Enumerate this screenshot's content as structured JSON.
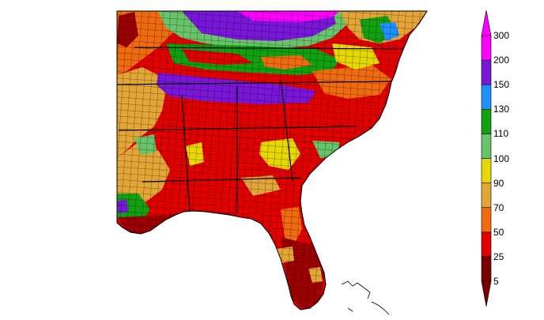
{
  "legend": {
    "ticks": [
      "300",
      "200",
      "150",
      "130",
      "110",
      "100",
      "90",
      "70",
      "50",
      "25",
      "5"
    ],
    "bands": [
      {
        "color": "#7a0000"
      },
      {
        "color": "#e00000"
      },
      {
        "color": "#f06a10"
      },
      {
        "color": "#e3a536"
      },
      {
        "color": "#e6d800"
      },
      {
        "color": "#68c46a"
      },
      {
        "color": "#10a010"
      },
      {
        "color": "#1e90ff"
      },
      {
        "color": "#7a16d8"
      },
      {
        "color": "#ff00ff"
      }
    ],
    "arrow_colors": {
      "bottom": "#7a0000",
      "top": "#ff00ff"
    }
  },
  "map": {
    "colors": {
      "dark_red": "#9c0000",
      "red": "#e00000",
      "orange": "#f06a10",
      "light_orange": "#e3a536",
      "yellow": "#e6d800",
      "light_green": "#68c46a",
      "green": "#10a010",
      "blue": "#1e90ff",
      "purple": "#7a16d8",
      "magenta": "#ff00ff",
      "border": "#000000"
    }
  }
}
